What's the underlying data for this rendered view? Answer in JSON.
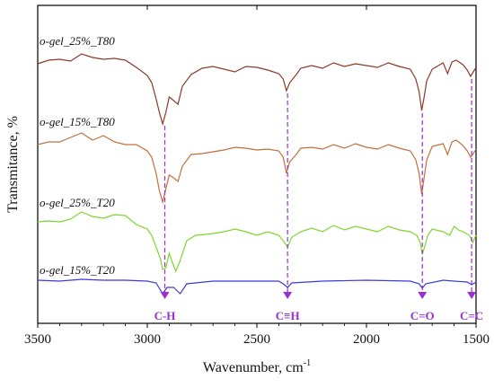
{
  "chart_data": {
    "type": "line",
    "xlabel": "Wavenumber, cm",
    "xlabel_sup": "-1",
    "ylabel": "Transmitance, %",
    "xlim": [
      3500,
      1500
    ],
    "x_reversed": true,
    "yticks_shown": false,
    "x_ticks": [
      3500,
      3000,
      2500,
      2000,
      1500
    ],
    "grid": false,
    "series": [
      {
        "name": "o-gel_15%_T20",
        "color": "#3b3bd6",
        "points": [
          [
            3500,
            312
          ],
          [
            3400,
            313
          ],
          [
            3300,
            311
          ],
          [
            3200,
            312
          ],
          [
            3100,
            312
          ],
          [
            3000,
            313
          ],
          [
            2960,
            315
          ],
          [
            2930,
            327
          ],
          [
            2910,
            320
          ],
          [
            2880,
            320
          ],
          [
            2850,
            327
          ],
          [
            2820,
            316
          ],
          [
            2700,
            313
          ],
          [
            2600,
            313
          ],
          [
            2400,
            313
          ],
          [
            2380,
            316
          ],
          [
            2360,
            320
          ],
          [
            2340,
            315
          ],
          [
            2200,
            313
          ],
          [
            2000,
            312
          ],
          [
            1800,
            313
          ],
          [
            1760,
            316
          ],
          [
            1745,
            321
          ],
          [
            1730,
            316
          ],
          [
            1650,
            312
          ],
          [
            1600,
            313
          ],
          [
            1540,
            314
          ],
          [
            1520,
            317
          ],
          [
            1500,
            314
          ]
        ]
      },
      {
        "name": "o-gel_25%_T20",
        "color": "#7ed62e",
        "points": [
          [
            3500,
            247
          ],
          [
            3450,
            246
          ],
          [
            3400,
            247
          ],
          [
            3350,
            244
          ],
          [
            3300,
            236
          ],
          [
            3250,
            241
          ],
          [
            3200,
            243
          ],
          [
            3150,
            239
          ],
          [
            3100,
            240
          ],
          [
            3050,
            250
          ],
          [
            3000,
            255
          ],
          [
            2980,
            262
          ],
          [
            2960,
            275
          ],
          [
            2940,
            288
          ],
          [
            2930,
            300
          ],
          [
            2915,
            298
          ],
          [
            2900,
            282
          ],
          [
            2885,
            293
          ],
          [
            2870,
            302
          ],
          [
            2850,
            290
          ],
          [
            2820,
            268
          ],
          [
            2780,
            262
          ],
          [
            2700,
            260
          ],
          [
            2650,
            258
          ],
          [
            2600,
            255
          ],
          [
            2550,
            258
          ],
          [
            2500,
            262
          ],
          [
            2450,
            258
          ],
          [
            2400,
            262
          ],
          [
            2380,
            268
          ],
          [
            2360,
            275
          ],
          [
            2340,
            264
          ],
          [
            2300,
            258
          ],
          [
            2250,
            254
          ],
          [
            2200,
            258
          ],
          [
            2150,
            251
          ],
          [
            2100,
            256
          ],
          [
            2050,
            252
          ],
          [
            2000,
            255
          ],
          [
            1950,
            258
          ],
          [
            1900,
            252
          ],
          [
            1850,
            256
          ],
          [
            1800,
            258
          ],
          [
            1770,
            262
          ],
          [
            1755,
            270
          ],
          [
            1745,
            283
          ],
          [
            1735,
            275
          ],
          [
            1720,
            262
          ],
          [
            1700,
            255
          ],
          [
            1650,
            258
          ],
          [
            1620,
            262
          ],
          [
            1600,
            252
          ],
          [
            1580,
            256
          ],
          [
            1560,
            258
          ],
          [
            1530,
            262
          ],
          [
            1515,
            270
          ],
          [
            1500,
            262
          ]
        ]
      },
      {
        "name": "o-gel_15%_T80",
        "color": "#c0703a",
        "points": [
          [
            3500,
            161
          ],
          [
            3450,
            158
          ],
          [
            3400,
            158
          ],
          [
            3350,
            153
          ],
          [
            3300,
            148
          ],
          [
            3250,
            156
          ],
          [
            3200,
            151
          ],
          [
            3150,
            158
          ],
          [
            3100,
            161
          ],
          [
            3050,
            161
          ],
          [
            3000,
            168
          ],
          [
            2980,
            175
          ],
          [
            2960,
            193
          ],
          [
            2945,
            212
          ],
          [
            2930,
            225
          ],
          [
            2915,
            210
          ],
          [
            2900,
            195
          ],
          [
            2880,
            198
          ],
          [
            2860,
            202
          ],
          [
            2840,
            185
          ],
          [
            2800,
            172
          ],
          [
            2750,
            171
          ],
          [
            2700,
            169
          ],
          [
            2650,
            167
          ],
          [
            2600,
            164
          ],
          [
            2550,
            165
          ],
          [
            2500,
            167
          ],
          [
            2450,
            166
          ],
          [
            2400,
            168
          ],
          [
            2380,
            175
          ],
          [
            2365,
            193
          ],
          [
            2350,
            180
          ],
          [
            2320,
            172
          ],
          [
            2300,
            165
          ],
          [
            2250,
            164
          ],
          [
            2200,
            166
          ],
          [
            2150,
            161
          ],
          [
            2100,
            165
          ],
          [
            2050,
            160
          ],
          [
            2000,
            164
          ],
          [
            1950,
            166
          ],
          [
            1900,
            161
          ],
          [
            1850,
            165
          ],
          [
            1800,
            168
          ],
          [
            1775,
            178
          ],
          [
            1760,
            193
          ],
          [
            1748,
            216
          ],
          [
            1738,
            200
          ],
          [
            1725,
            178
          ],
          [
            1700,
            163
          ],
          [
            1650,
            160
          ],
          [
            1630,
            172
          ],
          [
            1610,
            158
          ],
          [
            1590,
            156
          ],
          [
            1560,
            162
          ],
          [
            1540,
            168
          ],
          [
            1525,
            175
          ],
          [
            1510,
            170
          ],
          [
            1500,
            166
          ]
        ]
      },
      {
        "name": "o-gel_25%_T80",
        "color": "#8b3a2a",
        "points": [
          [
            3500,
            71
          ],
          [
            3450,
            67
          ],
          [
            3400,
            66
          ],
          [
            3350,
            68
          ],
          [
            3300,
            60
          ],
          [
            3250,
            64
          ],
          [
            3200,
            66
          ],
          [
            3150,
            65
          ],
          [
            3100,
            67
          ],
          [
            3050,
            75
          ],
          [
            3000,
            84
          ],
          [
            2980,
            92
          ],
          [
            2960,
            110
          ],
          [
            2945,
            125
          ],
          [
            2930,
            138
          ],
          [
            2915,
            125
          ],
          [
            2900,
            108
          ],
          [
            2880,
            112
          ],
          [
            2860,
            116
          ],
          [
            2840,
            96
          ],
          [
            2800,
            83
          ],
          [
            2750,
            76
          ],
          [
            2700,
            74
          ],
          [
            2650,
            77
          ],
          [
            2600,
            80
          ],
          [
            2550,
            74
          ],
          [
            2500,
            75
          ],
          [
            2450,
            78
          ],
          [
            2400,
            82
          ],
          [
            2380,
            88
          ],
          [
            2365,
            101
          ],
          [
            2350,
            92
          ],
          [
            2320,
            83
          ],
          [
            2300,
            76
          ],
          [
            2250,
            73
          ],
          [
            2200,
            76
          ],
          [
            2150,
            70
          ],
          [
            2100,
            74
          ],
          [
            2050,
            71
          ],
          [
            2000,
            73
          ],
          [
            1950,
            75
          ],
          [
            1900,
            70
          ],
          [
            1850,
            74
          ],
          [
            1800,
            77
          ],
          [
            1775,
            88
          ],
          [
            1760,
            102
          ],
          [
            1748,
            123
          ],
          [
            1738,
            110
          ],
          [
            1725,
            90
          ],
          [
            1700,
            77
          ],
          [
            1650,
            70
          ],
          [
            1630,
            82
          ],
          [
            1610,
            69
          ],
          [
            1590,
            67
          ],
          [
            1560,
            72
          ],
          [
            1540,
            78
          ],
          [
            1525,
            85
          ],
          [
            1510,
            79
          ],
          [
            1500,
            75
          ]
        ]
      }
    ],
    "annotations": [
      {
        "label": "C-H",
        "x": 2920
      },
      {
        "label": "C≡H",
        "x": 2360
      },
      {
        "label": "C=O",
        "x": 1745
      },
      {
        "label": "C=C",
        "x": 1520
      }
    ],
    "annotation_color": "#9b2fd6"
  }
}
